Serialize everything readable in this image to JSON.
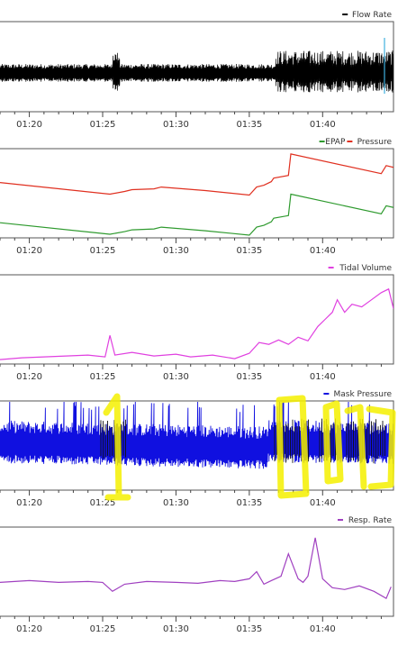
{
  "chart_data": [
    {
      "type": "line",
      "series": [
        {
          "name": "Flow Rate",
          "color": "#000000",
          "note": "dense oscillating signal, sparse before 01:35 and wider after; light blue spike near 01:44"
        }
      ],
      "x_ticks": [
        "01:20",
        "01:25",
        "01:30",
        "01:35",
        "01:40"
      ],
      "grid": false,
      "legend": "top-right"
    },
    {
      "type": "line",
      "series": [
        {
          "name": "EPAP",
          "color": "#2e9a2e",
          "x": [
            "01:18:00",
            "01:25:30",
            "01:26:30",
            "01:27:00",
            "01:28:30",
            "01:29:00",
            "01:32:00",
            "01:35:00",
            "01:35:30",
            "01:36:00",
            "01:36:30",
            "01:36:40",
            "01:37:40",
            "01:37:50",
            "01:44:00",
            "01:44:20",
            "01:44:50"
          ],
          "y": [
            0.17,
            0.04,
            0.07,
            0.09,
            0.1,
            0.12,
            0.08,
            0.03,
            0.12,
            0.14,
            0.18,
            0.22,
            0.25,
            0.49,
            0.27,
            0.36,
            0.34
          ]
        },
        {
          "name": "Pressure",
          "color": "#e03020",
          "x": [
            "01:18:00",
            "01:25:30",
            "01:26:30",
            "01:27:00",
            "01:28:30",
            "01:29:00",
            "01:32:00",
            "01:35:00",
            "01:35:30",
            "01:36:00",
            "01:36:30",
            "01:36:40",
            "01:37:40",
            "01:37:50",
            "01:44:00",
            "01:44:20",
            "01:44:50"
          ],
          "y": [
            0.62,
            0.49,
            0.52,
            0.54,
            0.55,
            0.57,
            0.53,
            0.48,
            0.57,
            0.59,
            0.63,
            0.67,
            0.7,
            0.94,
            0.72,
            0.81,
            0.79
          ]
        }
      ],
      "x_ticks": [
        "01:20",
        "01:25",
        "01:30",
        "01:35",
        "01:40"
      ],
      "grid": false,
      "legend": "top-right"
    },
    {
      "type": "line",
      "series": [
        {
          "name": "Tidal Volume",
          "color": "#e040e0",
          "x": [
            "01:18:00",
            "01:19:30",
            "01:21:00",
            "01:22:30",
            "01:24:00",
            "01:25:10",
            "01:25:30",
            "01:25:50",
            "01:27:00",
            "01:28:30",
            "01:30:00",
            "01:31:00",
            "01:32:30",
            "01:34:00",
            "01:35:00",
            "01:35:40",
            "01:36:20",
            "01:37:00",
            "01:37:40",
            "01:38:20",
            "01:39:00",
            "01:39:40",
            "01:40:10",
            "01:40:40",
            "01:41:00",
            "01:41:30",
            "01:42:00",
            "01:42:40",
            "01:43:20",
            "01:44:00",
            "01:44:30",
            "01:44:50"
          ],
          "y": [
            0.05,
            0.07,
            0.08,
            0.09,
            0.1,
            0.08,
            0.32,
            0.1,
            0.13,
            0.09,
            0.11,
            0.08,
            0.1,
            0.06,
            0.12,
            0.24,
            0.22,
            0.27,
            0.22,
            0.3,
            0.26,
            0.42,
            0.5,
            0.58,
            0.72,
            0.58,
            0.67,
            0.64,
            0.72,
            0.8,
            0.84,
            0.62
          ]
        }
      ],
      "x_ticks": [
        "01:20",
        "01:25",
        "01:30",
        "01:35",
        "01:40"
      ],
      "grid": false,
      "legend": "top-right"
    },
    {
      "type": "line",
      "series": [
        {
          "name": "Mask Pressure",
          "color": "#1010e0",
          "note": "dense blue band with black overlays; yellow hand-drawn highlight markings near 01:25 and 01:37-01:44"
        }
      ],
      "x_ticks": [
        "01:20",
        "01:25",
        "01:30",
        "01:35",
        "01:40"
      ],
      "grid": false,
      "legend": "top-right"
    },
    {
      "type": "line",
      "series": [
        {
          "name": "Resp. Rate",
          "color": "#a040c0",
          "x": [
            "01:18:00",
            "01:20:00",
            "01:22:00",
            "01:24:00",
            "01:25:00",
            "01:25:40",
            "01:26:30",
            "01:28:00",
            "01:30:00",
            "01:31:30",
            "01:33:00",
            "01:34:00",
            "01:35:00",
            "01:35:30",
            "01:36:00",
            "01:36:30",
            "01:37:10",
            "01:37:40",
            "01:38:20",
            "01:38:40",
            "01:39:00",
            "01:39:30",
            "01:40:00",
            "01:40:40",
            "01:41:30",
            "01:42:30",
            "01:43:30",
            "01:44:20",
            "01:44:40"
          ],
          "y": [
            0.38,
            0.4,
            0.38,
            0.39,
            0.38,
            0.28,
            0.36,
            0.39,
            0.38,
            0.37,
            0.4,
            0.39,
            0.42,
            0.5,
            0.36,
            0.4,
            0.45,
            0.7,
            0.42,
            0.38,
            0.45,
            0.88,
            0.42,
            0.32,
            0.3,
            0.34,
            0.28,
            0.2,
            0.33
          ]
        }
      ],
      "x_ticks": [
        "01:20",
        "01:25",
        "01:30",
        "01:35",
        "01:40"
      ],
      "grid": false,
      "legend": "top-right"
    }
  ]
}
